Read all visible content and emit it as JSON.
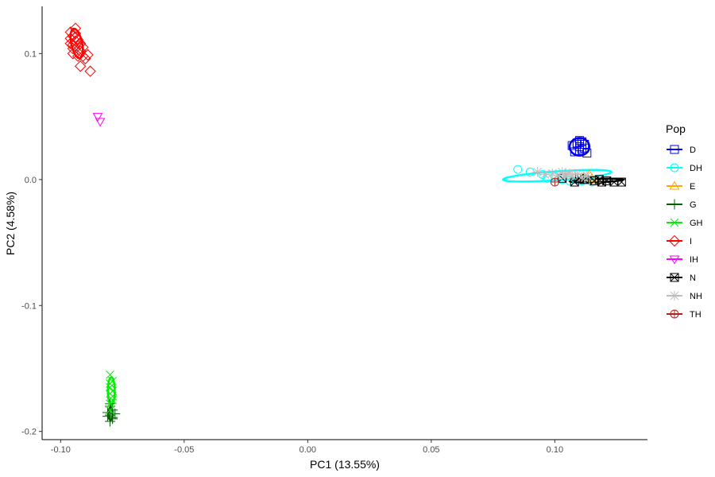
{
  "chart_data": {
    "type": "scatter",
    "xlabel": "PC1 (13.55%)",
    "ylabel": "PC2 (4.58%)",
    "xlim": [
      -0.1075,
      0.1375
    ],
    "ylim": [
      -0.2065,
      0.1375
    ],
    "xticks": [
      -0.1,
      -0.05,
      0.0,
      0.05,
      0.1
    ],
    "xtick_labels": [
      "-0.10",
      "-0.05",
      "0.00",
      "0.05",
      "0.10"
    ],
    "yticks": [
      -0.2,
      -0.1,
      0.0,
      0.1
    ],
    "ytick_labels": [
      "-0.2",
      "-0.1",
      "0.0",
      "0.1"
    ],
    "grid": false,
    "legend": {
      "title": "Pop",
      "position": "right"
    },
    "series": [
      {
        "name": "D",
        "color": "#0000EE",
        "shape": "square",
        "points": [
          [
            0.107,
            0.027
          ],
          [
            0.109,
            0.028
          ],
          [
            0.11,
            0.026
          ],
          [
            0.111,
            0.03
          ],
          [
            0.112,
            0.025
          ],
          [
            0.108,
            0.022
          ],
          [
            0.11,
            0.023
          ],
          [
            0.113,
            0.021
          ],
          [
            0.109,
            0.029
          ],
          [
            0.111,
            0.024
          ],
          [
            0.11,
            0.031
          ],
          [
            0.112,
            0.028
          ]
        ],
        "ellipse": {
          "cx": 0.11,
          "cy": 0.026,
          "rx": 0.004,
          "ry": 0.007,
          "angle": 0
        }
      },
      {
        "name": "DH",
        "color": "#00FFFF",
        "shape": "circle",
        "points": [
          [
            0.085,
            0.008
          ],
          [
            0.09,
            0.006
          ],
          [
            0.095,
            0.004
          ],
          [
            0.097,
            0.001
          ],
          [
            0.1,
            0.002
          ],
          [
            0.103,
            0.0
          ],
          [
            0.106,
            -0.001
          ],
          [
            0.108,
            0.001
          ],
          [
            0.111,
            -0.001
          ],
          [
            0.113,
            0.0
          ],
          [
            0.115,
            -0.002
          ]
        ],
        "ellipse": {
          "cx": 0.101,
          "cy": 0.003,
          "rx": 0.022,
          "ry": 0.0035,
          "angle": -4
        }
      },
      {
        "name": "E",
        "color": "#FFA500",
        "shape": "triangle-up",
        "points": [
          [
            0.112,
            0.002
          ],
          [
            0.115,
            0.001
          ],
          [
            0.114,
            0.004
          ],
          [
            0.117,
            0.0
          ]
        ]
      },
      {
        "name": "G",
        "color": "#006400",
        "shape": "plus",
        "points": [
          [
            -0.08,
            -0.18
          ],
          [
            -0.079,
            -0.183
          ],
          [
            -0.081,
            -0.185
          ],
          [
            -0.08,
            -0.187
          ],
          [
            -0.079,
            -0.19
          ],
          [
            -0.08,
            -0.192
          ],
          [
            -0.078,
            -0.186
          ],
          [
            -0.081,
            -0.188
          ],
          [
            -0.08,
            -0.178
          ],
          [
            -0.079,
            -0.189
          ]
        ],
        "ellipse": {
          "cx": -0.0798,
          "cy": -0.186,
          "rx": 0.0009,
          "ry": 0.005,
          "angle": 0
        }
      },
      {
        "name": "GH",
        "color": "#00EE00",
        "shape": "x",
        "points": [
          [
            -0.08,
            -0.155
          ],
          [
            -0.079,
            -0.16
          ],
          [
            -0.08,
            -0.165
          ],
          [
            -0.08,
            -0.17
          ],
          [
            -0.079,
            -0.175
          ],
          [
            -0.08,
            -0.178
          ],
          [
            -0.079,
            -0.168
          ],
          [
            -0.08,
            -0.162
          ],
          [
            -0.08,
            -0.183
          ],
          [
            -0.079,
            -0.172
          ]
        ],
        "ellipse": {
          "cx": -0.0795,
          "cy": -0.168,
          "rx": 0.0014,
          "ry": 0.011,
          "angle": 0
        }
      },
      {
        "name": "I",
        "color": "#FF0000",
        "shape": "diamond",
        "points": [
          [
            -0.096,
            0.117
          ],
          [
            -0.095,
            0.114
          ],
          [
            -0.094,
            0.12
          ],
          [
            -0.093,
            0.111
          ],
          [
            -0.096,
            0.108
          ],
          [
            -0.095,
            0.104
          ],
          [
            -0.094,
            0.11
          ],
          [
            -0.093,
            0.106
          ],
          [
            -0.092,
            0.102
          ],
          [
            -0.095,
            0.1
          ],
          [
            -0.091,
            0.098
          ],
          [
            -0.09,
            0.096
          ],
          [
            -0.089,
            0.099
          ],
          [
            -0.094,
            0.113
          ],
          [
            -0.096,
            0.112
          ],
          [
            -0.092,
            0.108
          ],
          [
            -0.091,
            0.105
          ],
          [
            -0.093,
            0.098
          ],
          [
            -0.092,
            0.09
          ],
          [
            -0.088,
            0.086
          ],
          [
            -0.094,
            0.116
          ],
          [
            -0.095,
            0.107
          ]
        ],
        "ellipse": {
          "cx": -0.0935,
          "cy": 0.108,
          "rx": 0.0022,
          "ry": 0.012,
          "angle": -12
        }
      },
      {
        "name": "IH",
        "color": "#FF00FF",
        "shape": "triangle-down",
        "points": [
          [
            -0.085,
            0.05
          ],
          [
            -0.084,
            0.046
          ]
        ]
      },
      {
        "name": "N",
        "color": "#000000",
        "shape": "square-x",
        "points": [
          [
            0.103,
            0.001
          ],
          [
            0.108,
            -0.002
          ],
          [
            0.112,
            0.0
          ],
          [
            0.116,
            -0.001
          ],
          [
            0.119,
            -0.002
          ],
          [
            0.121,
            -0.001
          ],
          [
            0.124,
            -0.002
          ],
          [
            0.127,
            -0.002
          ],
          [
            0.11,
            0.001
          ],
          [
            0.118,
            0.0
          ]
        ],
        "ellipse": {
          "cx": 0.117,
          "cy": -0.0008,
          "rx": 0.011,
          "ry": 0.0013,
          "angle": -2
        }
      },
      {
        "name": "NH",
        "color": "#BEBEBE",
        "shape": "star",
        "points": [
          [
            0.093,
            0.006
          ],
          [
            0.096,
            0.004
          ],
          [
            0.099,
            0.005
          ],
          [
            0.101,
            0.003
          ],
          [
            0.103,
            0.006
          ],
          [
            0.105,
            0.004
          ],
          [
            0.107,
            0.003
          ],
          [
            0.109,
            0.004
          ],
          [
            0.111,
            0.002
          ],
          [
            0.113,
            0.003
          ],
          [
            0.106,
            0.005
          ],
          [
            0.104,
            0.003
          ]
        ]
      },
      {
        "name": "TH",
        "color": "#B22222",
        "shape": "circle-plus",
        "points": [
          [
            0.1,
            -0.002
          ]
        ]
      }
    ]
  }
}
